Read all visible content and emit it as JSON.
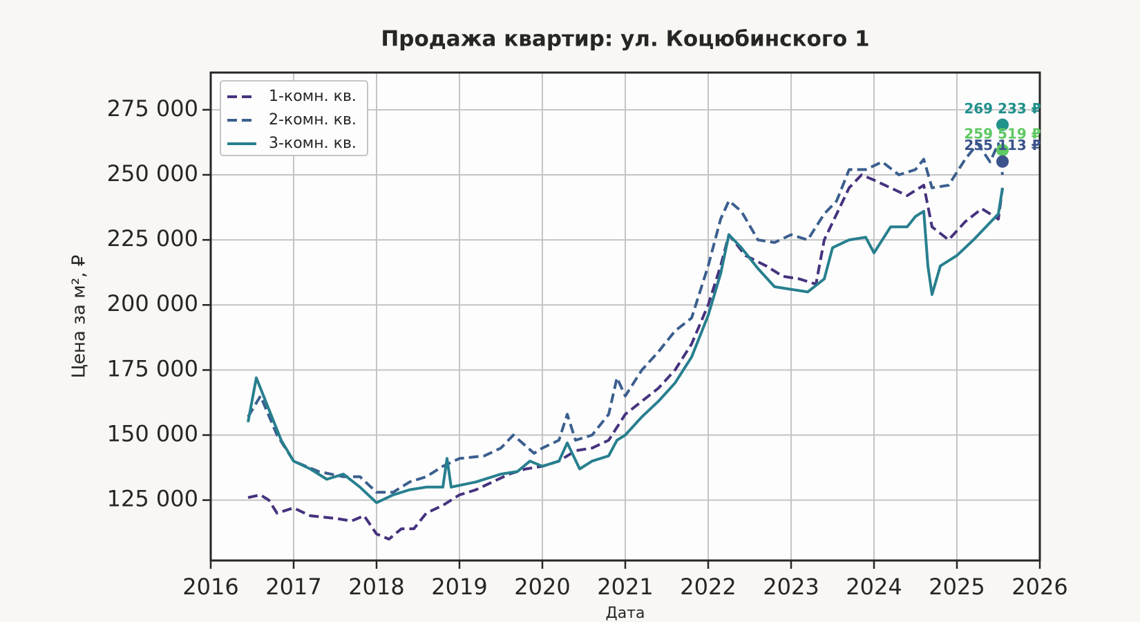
{
  "chart_data": {
    "type": "line",
    "title": "Продажа квартир: ул. Коцюбинского 1",
    "x_label": "Дата",
    "y_label": "Цена за м², ₽",
    "xlim": [
      2016,
      2026
    ],
    "xticks": [
      2016,
      2017,
      2018,
      2019,
      2020,
      2021,
      2022,
      2023,
      2024,
      2025,
      2026
    ],
    "ylim": [
      101800,
      289300
    ],
    "yticks": [
      {
        "value": 125000,
        "label": "125 000"
      },
      {
        "value": 150000,
        "label": "150 000"
      },
      {
        "value": 175000,
        "label": "175 000"
      },
      {
        "value": 200000,
        "label": "200 000"
      },
      {
        "value": 225000,
        "label": "225 000"
      },
      {
        "value": 250000,
        "label": "250 000"
      },
      {
        "value": 275000,
        "label": "275 000"
      }
    ],
    "grid": true,
    "legend": "upper-left",
    "series": [
      {
        "name": "1-комн. кв.",
        "color": "#46327e",
        "linestyle": "dashed",
        "x": [
          2016.45,
          2016.6,
          2016.7,
          2016.8,
          2017.0,
          2017.2,
          2017.5,
          2017.7,
          2017.85,
          2018.0,
          2018.15,
          2018.3,
          2018.45,
          2018.6,
          2018.8,
          2019.0,
          2019.2,
          2019.4,
          2019.6,
          2019.8,
          2020.0,
          2020.2,
          2020.4,
          2020.6,
          2020.8,
          2021.0,
          2021.2,
          2021.4,
          2021.6,
          2021.8,
          2022.0,
          2022.15,
          2022.25,
          2022.45,
          2022.7,
          2022.9,
          2023.1,
          2023.3,
          2023.4,
          2023.55,
          2023.7,
          2023.85,
          2024.0,
          2024.2,
          2024.4,
          2024.6,
          2024.7,
          2024.9,
          2025.1,
          2025.3,
          2025.5,
          2025.55
        ],
        "values": [
          126000,
          127000,
          125000,
          120000,
          122000,
          119000,
          118000,
          117000,
          119000,
          112000,
          110000,
          114000,
          114000,
          120000,
          123000,
          127000,
          129000,
          132000,
          135000,
          137000,
          138000,
          140000,
          144000,
          145000,
          148000,
          158000,
          163000,
          168000,
          175000,
          185000,
          200000,
          215000,
          227000,
          219000,
          215000,
          211000,
          210000,
          208000,
          225000,
          235000,
          245000,
          250000,
          248000,
          245000,
          242000,
          246000,
          230000,
          225000,
          232000,
          237000,
          233000,
          245000
        ]
      },
      {
        "name": "2-комн. кв.",
        "color": "#3b5f8e",
        "linestyle": "dashed",
        "x": [
          2016.45,
          2016.6,
          2016.8,
          2017.0,
          2017.3,
          2017.6,
          2017.8,
          2018.0,
          2018.2,
          2018.4,
          2018.6,
          2018.8,
          2019.0,
          2019.3,
          2019.5,
          2019.65,
          2019.9,
          2020.0,
          2020.2,
          2020.3,
          2020.4,
          2020.6,
          2020.8,
          2020.9,
          2021.0,
          2021.2,
          2021.4,
          2021.6,
          2021.8,
          2022.0,
          2022.15,
          2022.25,
          2022.4,
          2022.6,
          2022.8,
          2023.0,
          2023.2,
          2023.4,
          2023.55,
          2023.7,
          2023.9,
          2024.1,
          2024.3,
          2024.5,
          2024.6,
          2024.7,
          2024.9,
          2025.1,
          2025.25,
          2025.4,
          2025.5,
          2025.55
        ],
        "values": [
          157000,
          165000,
          150000,
          140000,
          136000,
          134000,
          134000,
          128000,
          128000,
          132000,
          134000,
          138000,
          141000,
          142000,
          145000,
          150000,
          143000,
          145000,
          148000,
          158000,
          148000,
          150000,
          158000,
          172000,
          165000,
          175000,
          182000,
          190000,
          195000,
          215000,
          233000,
          240000,
          236000,
          225000,
          224000,
          227000,
          225000,
          235000,
          240000,
          252000,
          252000,
          255000,
          250000,
          252000,
          256000,
          245000,
          246000,
          256000,
          262000,
          255000,
          262000,
          250000
        ]
      },
      {
        "name": "3-комн. кв.",
        "color": "#277f8e",
        "linestyle": "solid",
        "x": [
          2016.45,
          2016.55,
          2016.6,
          2016.7,
          2016.85,
          2017.0,
          2017.2,
          2017.4,
          2017.6,
          2017.8,
          2018.0,
          2018.2,
          2018.4,
          2018.6,
          2018.8,
          2018.85,
          2018.9,
          2019.2,
          2019.5,
          2019.7,
          2019.85,
          2020.0,
          2020.2,
          2020.3,
          2020.45,
          2020.6,
          2020.8,
          2020.9,
          2021.0,
          2021.2,
          2021.4,
          2021.6,
          2021.8,
          2022.0,
          2022.15,
          2022.25,
          2022.4,
          2022.6,
          2022.8,
          2023.0,
          2023.2,
          2023.4,
          2023.5,
          2023.7,
          2023.9,
          2024.0,
          2024.2,
          2024.4,
          2024.5,
          2024.6,
          2024.65,
          2024.7,
          2024.8,
          2025.0,
          2025.2,
          2025.35,
          2025.5,
          2025.55
        ],
        "values": [
          155000,
          172000,
          168000,
          160000,
          148000,
          140000,
          137000,
          133000,
          135000,
          130000,
          124000,
          127000,
          129000,
          130000,
          130000,
          141000,
          130000,
          132000,
          135000,
          136000,
          140000,
          138000,
          140000,
          147000,
          137000,
          140000,
          142000,
          148000,
          150000,
          157000,
          163000,
          170000,
          180000,
          196000,
          212000,
          227000,
          222000,
          214000,
          207000,
          206000,
          205000,
          210000,
          222000,
          225000,
          226000,
          220000,
          230000,
          230000,
          234000,
          236000,
          215000,
          204000,
          215000,
          219000,
          225000,
          230000,
          235000,
          245000
        ]
      }
    ],
    "annotations": [
      {
        "text": "269 233 ₽",
        "x": 2025.55,
        "value": 269233,
        "color": "#21918c"
      },
      {
        "text": "259 519 ₽",
        "x": 2025.55,
        "value": 259519,
        "color": "#5ec962"
      },
      {
        "text": "255 113 ₽",
        "x": 2025.55,
        "value": 255113,
        "color": "#3b528b"
      }
    ]
  }
}
